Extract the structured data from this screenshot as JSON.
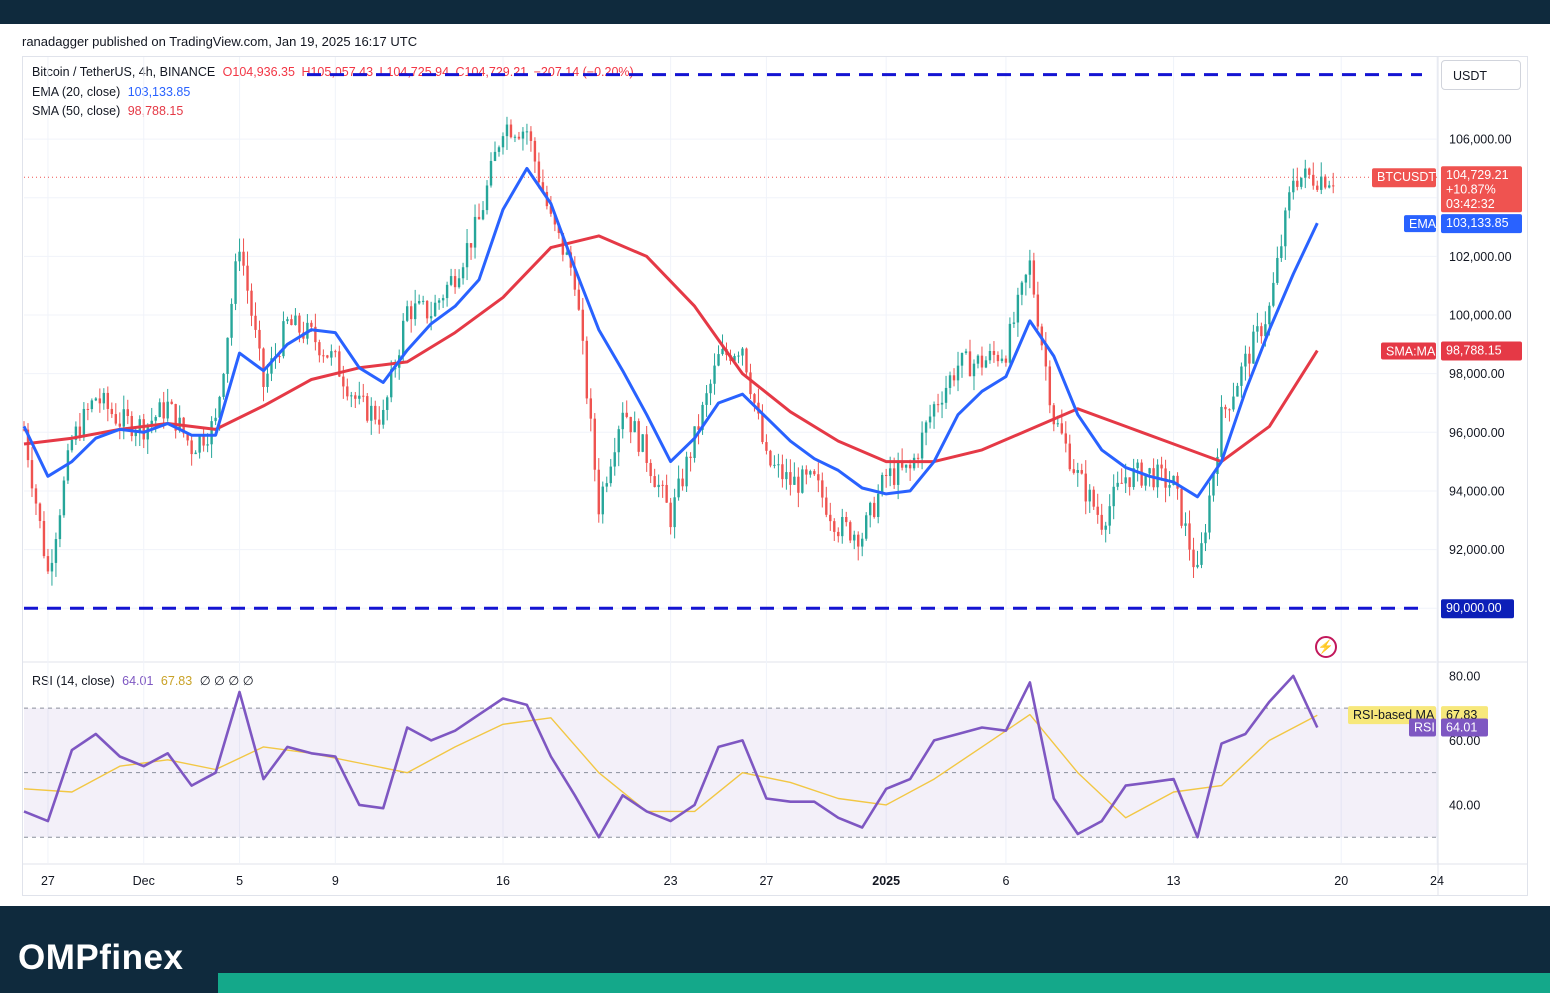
{
  "header": {
    "published_text": "ranadagger published on TradingView.com, Jan 19, 2025 16:17 UTC"
  },
  "legend": {
    "symbol": "Bitcoin / TetherUS, 4h, BINANCE",
    "open": "O104,936.35",
    "high": "H105,057.43",
    "low": "L104,725.94",
    "close": "C104,729.21",
    "change": "−207.14 (−0.20%)",
    "ema_label": "EMA (20, close)",
    "ema_value": "103,133.85",
    "sma_label": "SMA (50, close)",
    "sma_value": "98,788.15",
    "rsi_label": "RSI (14, close)",
    "rsi_value": "64.01",
    "rsi_ma_value": "67.83",
    "rsi_extra": "∅ ∅ ∅ ∅"
  },
  "currency_button": "USDT",
  "price_tags": {
    "btc_label": "BTCUSDT",
    "btc_price": "104,729.21",
    "btc_change": "+10.87%",
    "btc_countdown": "03:42:32",
    "ema_label": "EMA",
    "ema_value": "103,133.85",
    "sma_label": "SMA:MA",
    "sma_value": "98,788.15",
    "support_value": "90,000.00",
    "rsi_ma_label": "RSI-based MA",
    "rsi_ma_value": "67.83",
    "rsi_label": "RSI",
    "rsi_value": "64.01"
  },
  "brand": {
    "name_a": "OMP",
    "name_b": "finex"
  },
  "colors": {
    "up": "#26a69a",
    "down": "#ef5350",
    "ema": "#2962ff",
    "sma": "#e53946",
    "rsi": "#7e57c2",
    "rsi_ma": "#f2c744",
    "level_line": "#1414d2",
    "background_dark": "#0f2a3d",
    "accent": "#14a88a"
  },
  "chart_data": {
    "type": "candlestick",
    "symbol": "BTCUSDT",
    "timeframe": "4h",
    "y_ticks": [
      "106,000.00",
      "104,000.00",
      "102,000.00",
      "100,000.00",
      "98,000.00",
      "96,000.00",
      "94,000.00",
      "92,000.00",
      "90,000.00"
    ],
    "y_range": [
      88200,
      108800
    ],
    "x_ticks": [
      {
        "date": "2024-11-27",
        "label": "27"
      },
      {
        "date": "2024-12-01",
        "label": "Dec"
      },
      {
        "date": "2024-12-05",
        "label": "5"
      },
      {
        "date": "2024-12-09",
        "label": "9"
      },
      {
        "date": "2024-12-16",
        "label": "16"
      },
      {
        "date": "2024-12-23",
        "label": "23"
      },
      {
        "date": "2024-12-27",
        "label": "27"
      },
      {
        "date": "2025-01-01",
        "label": "2025"
      },
      {
        "date": "2025-01-06",
        "label": "6"
      },
      {
        "date": "2025-01-13",
        "label": "13"
      },
      {
        "date": "2025-01-20",
        "label": "20"
      },
      {
        "date": "2025-01-24",
        "label": "24"
      }
    ],
    "x_range": [
      "2024-11-26",
      "2025-01-24"
    ],
    "horizontal_levels": [
      108200,
      90000
    ],
    "close_path": [
      [
        "2024-11-26",
        96100
      ],
      [
        "2024-11-27",
        91200
      ],
      [
        "2024-11-28",
        95700
      ],
      [
        "2024-11-29",
        97200
      ],
      [
        "2024-11-30",
        96400
      ],
      [
        "2024-12-01",
        96200
      ],
      [
        "2024-12-02",
        96900
      ],
      [
        "2024-12-03",
        95500
      ],
      [
        "2024-12-04",
        96300
      ],
      [
        "2024-12-05",
        102500
      ],
      [
        "2024-12-06",
        97600
      ],
      [
        "2024-12-07",
        99700
      ],
      [
        "2024-12-08",
        99300
      ],
      [
        "2024-12-09",
        98400
      ],
      [
        "2024-12-10",
        96900
      ],
      [
        "2024-12-11",
        96500
      ],
      [
        "2024-12-12",
        100200
      ],
      [
        "2024-12-13",
        100100
      ],
      [
        "2024-12-14",
        101400
      ],
      [
        "2024-12-15",
        103200
      ],
      [
        "2024-12-16",
        106500
      ],
      [
        "2024-12-17",
        106300
      ],
      [
        "2024-12-18",
        103200
      ],
      [
        "2024-12-19",
        101300
      ],
      [
        "2024-12-20",
        93500
      ],
      [
        "2024-12-21",
        96900
      ],
      [
        "2024-12-22",
        95200
      ],
      [
        "2024-12-23",
        93100
      ],
      [
        "2024-12-24",
        95800
      ],
      [
        "2024-12-25",
        98500
      ],
      [
        "2024-12-26",
        99000
      ],
      [
        "2024-12-27",
        95000
      ],
      [
        "2024-12-28",
        94300
      ],
      [
        "2024-12-29",
        94300
      ],
      [
        "2024-12-30",
        92800
      ],
      [
        "2024-12-31",
        92500
      ],
      [
        "2025-01-01",
        94500
      ],
      [
        "2025-01-02",
        94700
      ],
      [
        "2025-01-03",
        96900
      ],
      [
        "2025-01-04",
        98300
      ],
      [
        "2025-01-05",
        98400
      ],
      [
        "2025-01-06",
        98800
      ],
      [
        "2025-01-07",
        101700
      ],
      [
        "2025-01-08",
        96500
      ],
      [
        "2025-01-09",
        94500
      ],
      [
        "2025-01-10",
        93000
      ],
      [
        "2025-01-11",
        94500
      ],
      [
        "2025-01-12",
        94600
      ],
      [
        "2025-01-13",
        94200
      ],
      [
        "2025-01-14",
        91100
      ],
      [
        "2025-01-15",
        96500
      ],
      [
        "2025-01-16",
        98400
      ],
      [
        "2025-01-17",
        100200
      ],
      [
        "2025-01-18",
        104700
      ],
      [
        "2025-01-19",
        104700
      ]
    ],
    "series": [
      {
        "name": "EMA (20, close)",
        "last": 103133.85,
        "points": [
          [
            "2024-11-26",
            96200
          ],
          [
            "2024-11-27",
            94500
          ],
          [
            "2024-11-28",
            95000
          ],
          [
            "2024-11-29",
            95800
          ],
          [
            "2024-11-30",
            96100
          ],
          [
            "2024-12-01",
            96000
          ],
          [
            "2024-12-02",
            96300
          ],
          [
            "2024-12-03",
            95900
          ],
          [
            "2024-12-04",
            95900
          ],
          [
            "2024-12-05",
            98700
          ],
          [
            "2024-12-06",
            98100
          ],
          [
            "2024-12-07",
            99000
          ],
          [
            "2024-12-08",
            99500
          ],
          [
            "2024-12-09",
            99400
          ],
          [
            "2024-12-10",
            98200
          ],
          [
            "2024-12-11",
            97700
          ],
          [
            "2024-12-12",
            98800
          ],
          [
            "2024-12-13",
            99700
          ],
          [
            "2024-12-14",
            100300
          ],
          [
            "2024-12-15",
            101200
          ],
          [
            "2024-12-16",
            103600
          ],
          [
            "2024-12-17",
            105000
          ],
          [
            "2024-12-18",
            103800
          ],
          [
            "2024-12-19",
            101600
          ],
          [
            "2024-12-20",
            99500
          ],
          [
            "2024-12-21",
            98100
          ],
          [
            "2024-12-22",
            96600
          ],
          [
            "2024-12-23",
            95000
          ],
          [
            "2024-12-24",
            95800
          ],
          [
            "2024-12-25",
            97000
          ],
          [
            "2024-12-26",
            97300
          ],
          [
            "2024-12-27",
            96500
          ],
          [
            "2024-12-28",
            95700
          ],
          [
            "2024-12-29",
            95100
          ],
          [
            "2024-12-30",
            94700
          ],
          [
            "2024-12-31",
            94100
          ],
          [
            "2025-01-01",
            93900
          ],
          [
            "2025-01-02",
            94000
          ],
          [
            "2025-01-03",
            95000
          ],
          [
            "2025-01-04",
            96600
          ],
          [
            "2025-01-05",
            97400
          ],
          [
            "2025-01-06",
            97900
          ],
          [
            "2025-01-07",
            99800
          ],
          [
            "2025-01-08",
            98600
          ],
          [
            "2025-01-09",
            96600
          ],
          [
            "2025-01-10",
            95400
          ],
          [
            "2025-01-11",
            94800
          ],
          [
            "2025-01-12",
            94500
          ],
          [
            "2025-01-13",
            94300
          ],
          [
            "2025-01-14",
            93800
          ],
          [
            "2025-01-15",
            95000
          ],
          [
            "2025-01-16",
            97400
          ],
          [
            "2025-01-17",
            99500
          ],
          [
            "2025-01-18",
            101400
          ],
          [
            "2025-01-19",
            103134
          ]
        ]
      },
      {
        "name": "SMA (50, close)",
        "last": 98788.15,
        "points": [
          [
            "2024-11-26",
            95600
          ],
          [
            "2024-11-28",
            95800
          ],
          [
            "2024-11-30",
            96100
          ],
          [
            "2024-12-02",
            96300
          ],
          [
            "2024-12-04",
            96100
          ],
          [
            "2024-12-06",
            96900
          ],
          [
            "2024-12-08",
            97800
          ],
          [
            "2024-12-10",
            98200
          ],
          [
            "2024-12-12",
            98400
          ],
          [
            "2024-12-14",
            99400
          ],
          [
            "2024-12-16",
            100600
          ],
          [
            "2024-12-18",
            102300
          ],
          [
            "2024-12-20",
            102700
          ],
          [
            "2024-12-22",
            102000
          ],
          [
            "2024-12-24",
            100300
          ],
          [
            "2024-12-26",
            98000
          ],
          [
            "2024-12-28",
            96700
          ],
          [
            "2024-12-30",
            95700
          ],
          [
            "2025-01-01",
            95000
          ],
          [
            "2025-01-03",
            95000
          ],
          [
            "2025-01-05",
            95400
          ],
          [
            "2025-01-07",
            96100
          ],
          [
            "2025-01-09",
            96800
          ],
          [
            "2025-01-11",
            96200
          ],
          [
            "2025-01-13",
            95600
          ],
          [
            "2025-01-15",
            95000
          ],
          [
            "2025-01-17",
            96200
          ],
          [
            "2025-01-19",
            98788
          ]
        ]
      },
      {
        "name": "RSI (14, close)",
        "last": 64.01,
        "points": [
          [
            "2024-11-26",
            38
          ],
          [
            "2024-11-27",
            35
          ],
          [
            "2024-11-28",
            57
          ],
          [
            "2024-11-29",
            62
          ],
          [
            "2024-11-30",
            55
          ],
          [
            "2024-12-01",
            52
          ],
          [
            "2024-12-02",
            56
          ],
          [
            "2024-12-03",
            46
          ],
          [
            "2024-12-04",
            50
          ],
          [
            "2024-12-05",
            75
          ],
          [
            "2024-12-06",
            48
          ],
          [
            "2024-12-07",
            58
          ],
          [
            "2024-12-08",
            56
          ],
          [
            "2024-12-09",
            55
          ],
          [
            "2024-12-10",
            40
          ],
          [
            "2024-12-11",
            39
          ],
          [
            "2024-12-12",
            64
          ],
          [
            "2024-12-13",
            60
          ],
          [
            "2024-12-14",
            63
          ],
          [
            "2024-12-15",
            68
          ],
          [
            "2024-12-16",
            73
          ],
          [
            "2024-12-17",
            71
          ],
          [
            "2024-12-18",
            55
          ],
          [
            "2024-12-19",
            43
          ],
          [
            "2024-12-20",
            30
          ],
          [
            "2024-12-21",
            43
          ],
          [
            "2024-12-22",
            38
          ],
          [
            "2024-12-23",
            35
          ],
          [
            "2024-12-24",
            40
          ],
          [
            "2024-12-25",
            58
          ],
          [
            "2024-12-26",
            60
          ],
          [
            "2024-12-27",
            42
          ],
          [
            "2024-12-28",
            41
          ],
          [
            "2024-12-29",
            41
          ],
          [
            "2024-12-30",
            36
          ],
          [
            "2024-12-31",
            33
          ],
          [
            "2025-01-01",
            45
          ],
          [
            "2025-01-02",
            48
          ],
          [
            "2025-01-03",
            60
          ],
          [
            "2025-01-04",
            62
          ],
          [
            "2025-01-05",
            64
          ],
          [
            "2025-01-06",
            63
          ],
          [
            "2025-01-07",
            78
          ],
          [
            "2025-01-08",
            42
          ],
          [
            "2025-01-09",
            31
          ],
          [
            "2025-01-10",
            35
          ],
          [
            "2025-01-11",
            46
          ],
          [
            "2025-01-12",
            47
          ],
          [
            "2025-01-13",
            48
          ],
          [
            "2025-01-14",
            30
          ],
          [
            "2025-01-15",
            59
          ],
          [
            "2025-01-16",
            62
          ],
          [
            "2025-01-17",
            72
          ],
          [
            "2025-01-18",
            80
          ],
          [
            "2025-01-19",
            64
          ]
        ]
      },
      {
        "name": "RSI-based MA",
        "last": 67.83,
        "points": [
          [
            "2024-11-26",
            45
          ],
          [
            "2024-11-28",
            44
          ],
          [
            "2024-11-30",
            52
          ],
          [
            "2024-12-02",
            54
          ],
          [
            "2024-12-04",
            51
          ],
          [
            "2024-12-06",
            58
          ],
          [
            "2024-12-08",
            56
          ],
          [
            "2024-12-10",
            53
          ],
          [
            "2024-12-12",
            50
          ],
          [
            "2024-12-14",
            58
          ],
          [
            "2024-12-16",
            65
          ],
          [
            "2024-12-18",
            67
          ],
          [
            "2024-12-20",
            50
          ],
          [
            "2024-12-22",
            38
          ],
          [
            "2024-12-24",
            38
          ],
          [
            "2024-12-26",
            50
          ],
          [
            "2024-12-28",
            47
          ],
          [
            "2024-12-30",
            42
          ],
          [
            "2025-01-01",
            40
          ],
          [
            "2025-01-03",
            48
          ],
          [
            "2025-01-05",
            58
          ],
          [
            "2025-01-07",
            68
          ],
          [
            "2025-01-09",
            50
          ],
          [
            "2025-01-11",
            36
          ],
          [
            "2025-01-13",
            44
          ],
          [
            "2025-01-15",
            46
          ],
          [
            "2025-01-17",
            60
          ],
          [
            "2025-01-19",
            67.83
          ]
        ]
      }
    ],
    "rsi_y_ticks": [
      "80.00",
      "60.00",
      "40.00"
    ],
    "rsi_range": [
      22,
      84
    ],
    "rsi_band": [
      30,
      70
    ],
    "rsi_mid": 50
  }
}
